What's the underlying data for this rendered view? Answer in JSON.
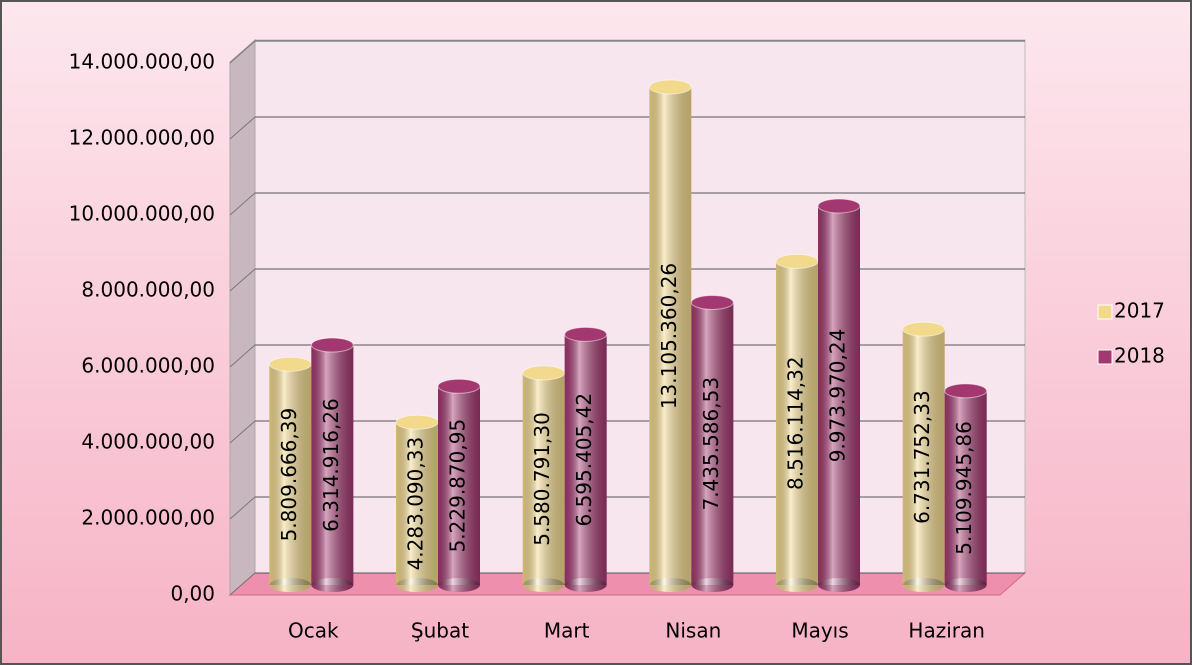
{
  "chart_data": {
    "type": "bar",
    "categories": [
      "Ocak",
      "Şubat",
      "Mart",
      "Nisan",
      "Mayıs",
      "Haziran"
    ],
    "series": [
      {
        "name": "2017",
        "color": "#f3d98c",
        "values": [
          5809666.39,
          4283090.33,
          5580791.3,
          13105360.26,
          8516114.32,
          6731752.33
        ],
        "value_labels": [
          "5.809.666,39",
          "4.283.090,33",
          "5.580.791,30",
          "13.105.360,26",
          "8.516.114,32",
          "6.731.752,33"
        ]
      },
      {
        "name": "2018",
        "color": "#a3376f",
        "values": [
          6314916.26,
          5229870.95,
          6595405.42,
          7435586.53,
          9973970.24,
          5109945.86
        ],
        "value_labels": [
          "6.314.916,26",
          "5.229.870,95",
          "6.595.405,42",
          "7.435.586,53",
          "9.973.970,24",
          "5.109.945,86"
        ]
      }
    ],
    "ylim": [
      0,
      14000000
    ],
    "yticks": [
      {
        "value": 0,
        "label": "0,00"
      },
      {
        "value": 2000000,
        "label": "2.000.000,00"
      },
      {
        "value": 4000000,
        "label": "4.000.000,00"
      },
      {
        "value": 6000000,
        "label": "6.000.000,00"
      },
      {
        "value": 8000000,
        "label": "8.000.000,00"
      },
      {
        "value": 10000000,
        "label": "10.000.000,00"
      },
      {
        "value": 12000000,
        "label": "12.000.000,00"
      },
      {
        "value": 14000000,
        "label": "14.000.000,00"
      }
    ],
    "grid": true,
    "legend": "right"
  }
}
